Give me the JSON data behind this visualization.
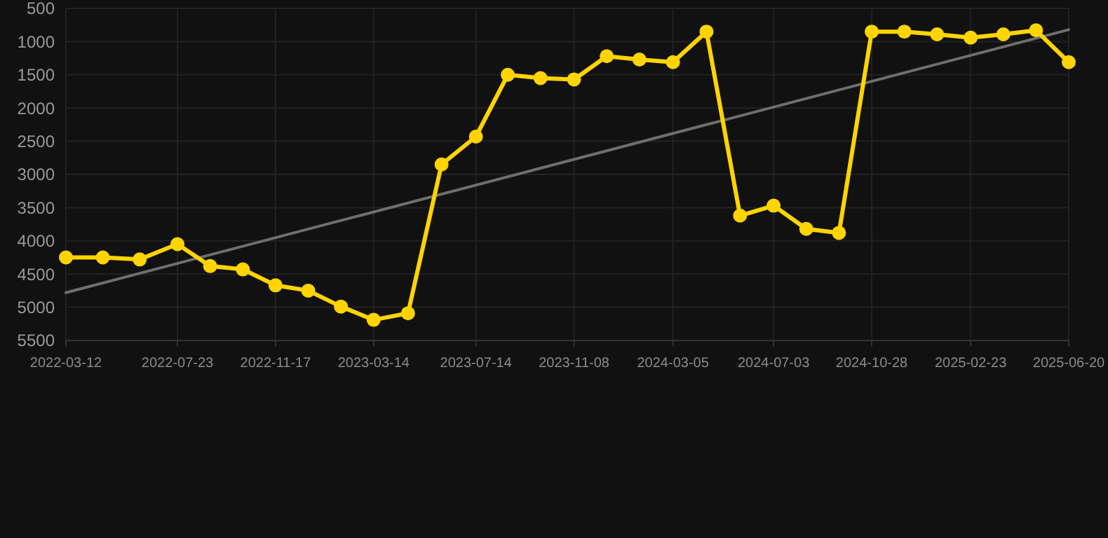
{
  "chart_data": {
    "type": "line",
    "x": [
      "2022-03-12",
      "2022-04-25",
      "2022-06-08",
      "2022-07-23",
      "2022-08-31",
      "2022-10-09",
      "2022-11-17",
      "2022-12-26",
      "2023-02-03",
      "2023-03-14",
      "2023-04-24",
      "2023-06-03",
      "2023-07-14",
      "2023-08-21",
      "2023-09-29",
      "2023-11-08",
      "2023-12-17",
      "2024-01-25",
      "2024-03-05",
      "2024-04-14",
      "2024-05-24",
      "2024-07-03",
      "2024-08-11",
      "2024-09-19",
      "2024-10-28",
      "2024-12-06",
      "2025-01-14",
      "2025-02-23",
      "2025-04-03",
      "2025-05-12",
      "2025-06-20"
    ],
    "series": [
      {
        "color": "#ffd400",
        "marker": "circle",
        "values": [
          4250,
          4250,
          4280,
          4050,
          4380,
          4430,
          4670,
          4750,
          4990,
          5190,
          5090,
          2850,
          2430,
          1500,
          1550,
          1570,
          1220,
          1270,
          1310,
          850,
          3620,
          3470,
          3820,
          3880,
          850,
          850,
          890,
          940,
          890,
          830,
          1310
        ]
      },
      {
        "type": "line",
        "color": "#6e6e6e",
        "marker": "none",
        "x": [
          "2022-03-12",
          "2025-06-20"
        ],
        "values": [
          4780,
          820
        ]
      }
    ],
    "xlim": [
      "2022-03-12",
      "2025-06-20"
    ],
    "xticks": [
      "2022-03-12",
      "2022-07-23",
      "2022-11-17",
      "2023-03-14",
      "2023-07-14",
      "2023-11-08",
      "2024-03-05",
      "2024-07-03",
      "2024-10-28",
      "2025-02-23",
      "2025-06-20"
    ],
    "ylim": [
      5500,
      500
    ],
    "yticks": [
      500,
      1000,
      1500,
      2000,
      2500,
      3000,
      3500,
      4000,
      4500,
      5000,
      5500
    ],
    "grid": true
  }
}
